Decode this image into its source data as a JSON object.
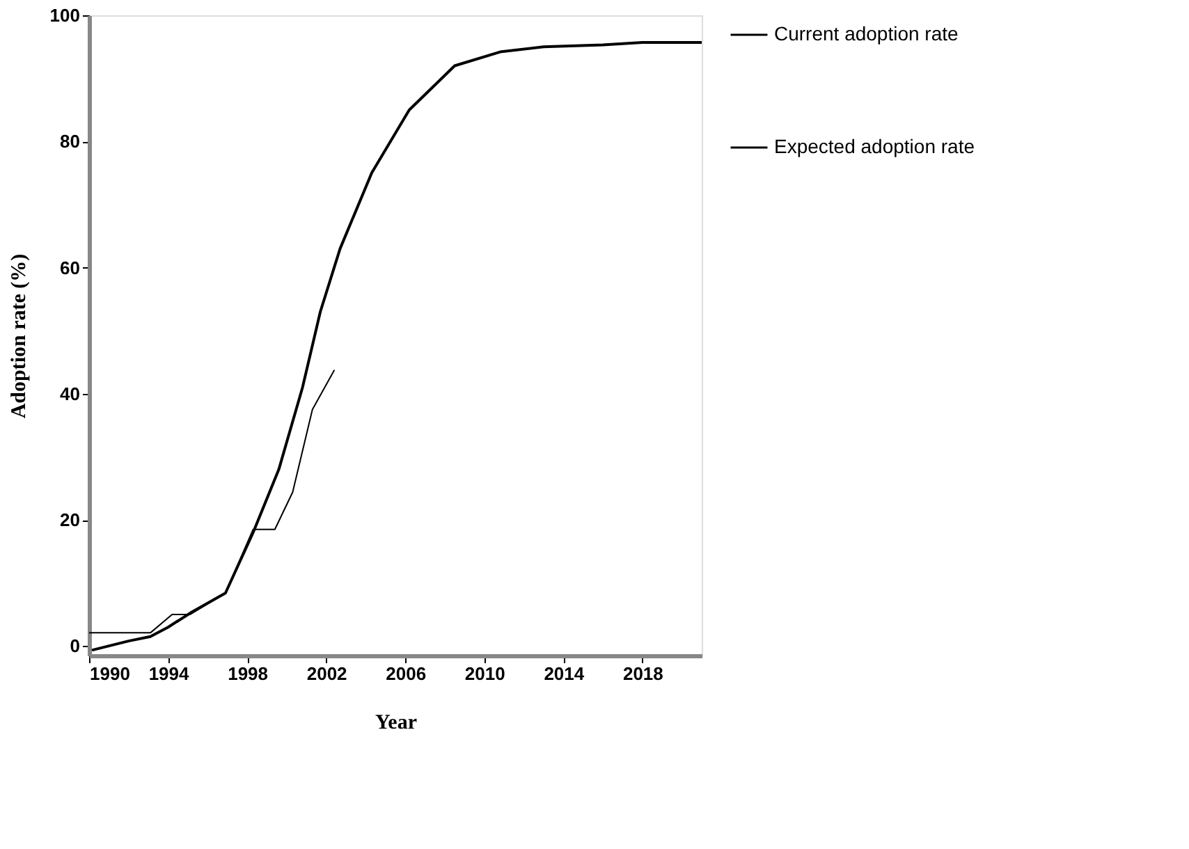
{
  "chart_data": {
    "type": "line",
    "xlabel": "Year",
    "ylabel": "Adoption rate (%)",
    "xlim": [
      1990,
      2021
    ],
    "xticks": [
      1990,
      1994,
      1998,
      2002,
      2006,
      2010,
      2014,
      2018
    ],
    "ylim": [
      -1.5,
      100
    ],
    "yticks": [
      0,
      20,
      40,
      60,
      80,
      100
    ],
    "grid": false,
    "legend": "right",
    "line_style": "solid",
    "series": [
      {
        "name": "Current adoption rate",
        "color": "#000000",
        "x": [
          1990.2,
          1992,
          1993.1,
          1994,
          1995.2,
          1996.9,
          1998.3,
          1999.6,
          2000.8,
          2001.7,
          2002.7,
          2004.3,
          2006.2,
          2008.5,
          2010.8,
          2013,
          2016,
          2018,
          2021
        ],
        "values": [
          -0.6,
          0.8,
          1.5,
          3,
          5.4,
          8.4,
          18,
          28,
          41,
          53,
          63,
          75,
          85,
          92,
          94.2,
          95,
          95.3,
          95.7,
          95.7
        ]
      },
      {
        "name": "Expected adoption rate",
        "color": "#000000",
        "x": [
          1990,
          1993.1,
          1994.2,
          1995.1,
          1996.9,
          1998.3,
          1999.4,
          2000.3,
          2001.3,
          2002.4
        ],
        "values": [
          2.1,
          2.1,
          5,
          5,
          8.4,
          18.5,
          18.5,
          24.4,
          37.5,
          43.7
        ]
      }
    ]
  }
}
